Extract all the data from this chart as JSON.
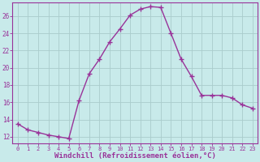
{
  "x": [
    0,
    1,
    2,
    3,
    4,
    5,
    6,
    7,
    8,
    9,
    10,
    11,
    12,
    13,
    14,
    15,
    16,
    17,
    18,
    19,
    20,
    21,
    22,
    23
  ],
  "y": [
    13.5,
    12.8,
    12.5,
    12.2,
    12.0,
    11.8,
    16.2,
    19.3,
    21.0,
    23.0,
    24.5,
    26.1,
    26.8,
    27.1,
    27.0,
    24.0,
    21.0,
    19.0,
    16.8,
    16.8,
    16.8,
    16.5,
    15.7,
    15.3
  ],
  "line_color": "#993399",
  "marker": "+",
  "marker_size": 4,
  "marker_lw": 1.0,
  "bg_color": "#c8eaea",
  "grid_color": "#aacccc",
  "xlabel": "Windchill (Refroidissement éolien,°C)",
  "xlabel_fontsize": 6.5,
  "xtick_labels": [
    "0",
    "1",
    "2",
    "3",
    "4",
    "5",
    "6",
    "7",
    "8",
    "9",
    "10",
    "11",
    "12",
    "13",
    "14",
    "15",
    "16",
    "17",
    "18",
    "19",
    "20",
    "21",
    "22",
    "23"
  ],
  "ytick_min": 12,
  "ytick_max": 26,
  "ytick_step": 2,
  "xlim": [
    -0.5,
    23.5
  ],
  "ylim": [
    11.2,
    27.6
  ]
}
